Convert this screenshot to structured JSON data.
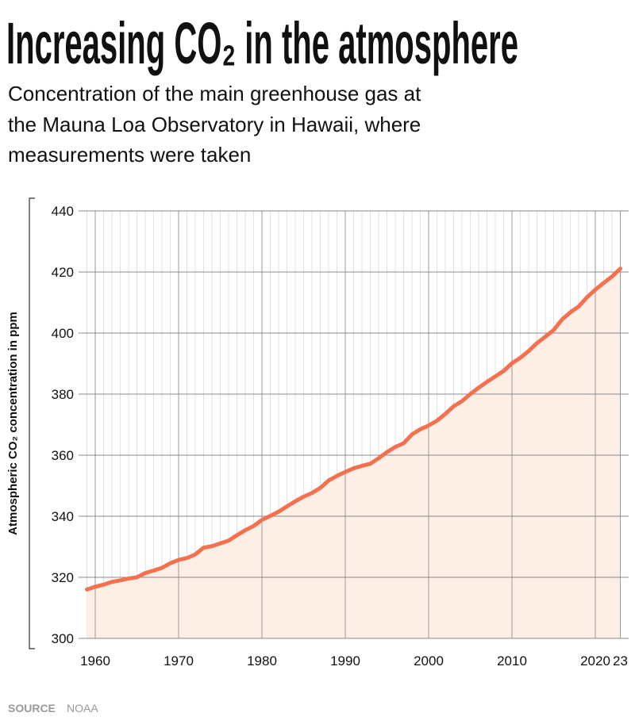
{
  "chart_data": {
    "type": "line",
    "title": "Increasing CO₂ in the atmosphere",
    "subtitle": [
      "Concentration of the main greenhouse gas at",
      "the Mauna Loa Observatory in Hawaii, where",
      "measurements were taken"
    ],
    "ylabel": "Atmospheric CO₂ concentration in ppm",
    "source_label": "SOURCE",
    "source": "NOAA",
    "x": [
      1959,
      1960,
      1961,
      1962,
      1963,
      1964,
      1965,
      1966,
      1967,
      1968,
      1969,
      1970,
      1971,
      1972,
      1973,
      1974,
      1975,
      1976,
      1977,
      1978,
      1979,
      1980,
      1981,
      1982,
      1983,
      1984,
      1985,
      1986,
      1987,
      1988,
      1989,
      1990,
      1991,
      1992,
      1993,
      1994,
      1995,
      1996,
      1997,
      1998,
      1999,
      2000,
      2001,
      2002,
      2003,
      2004,
      2005,
      2006,
      2007,
      2008,
      2009,
      2010,
      2011,
      2012,
      2013,
      2014,
      2015,
      2016,
      2017,
      2018,
      2019,
      2020,
      2021,
      2022,
      2023
    ],
    "series": [
      {
        "name": "CO₂",
        "color": "#f4714f",
        "fill": "#fdeee6",
        "values": [
          316.0,
          316.9,
          317.6,
          318.5,
          319.0,
          319.6,
          320.0,
          321.4,
          322.2,
          323.1,
          324.6,
          325.7,
          326.3,
          327.5,
          329.7,
          330.2,
          331.1,
          332.0,
          333.8,
          335.4,
          336.8,
          338.8,
          340.1,
          341.5,
          343.2,
          344.9,
          346.4,
          347.6,
          349.3,
          351.7,
          353.2,
          354.5,
          355.7,
          356.5,
          357.2,
          359.0,
          361.0,
          362.7,
          363.9,
          366.8,
          368.5,
          369.7,
          371.3,
          373.5,
          376.0,
          377.7,
          380.0,
          382.1,
          384.0,
          385.8,
          387.6,
          390.1,
          391.9,
          394.1,
          396.7,
          398.8,
          401.0,
          404.4,
          406.8,
          408.7,
          411.7,
          414.2,
          416.4,
          418.5,
          421.1
        ]
      }
    ],
    "xlim": [
      1958,
      2024
    ],
    "ylim": [
      300,
      440
    ],
    "xticks": [
      1960,
      1970,
      1980,
      1990,
      2000,
      2010,
      2020,
      {
        "value": 2023,
        "label": "23"
      }
    ],
    "yticks": [
      300,
      320,
      340,
      360,
      380,
      400,
      420,
      440
    ],
    "grid": true,
    "minor_grid": true
  }
}
